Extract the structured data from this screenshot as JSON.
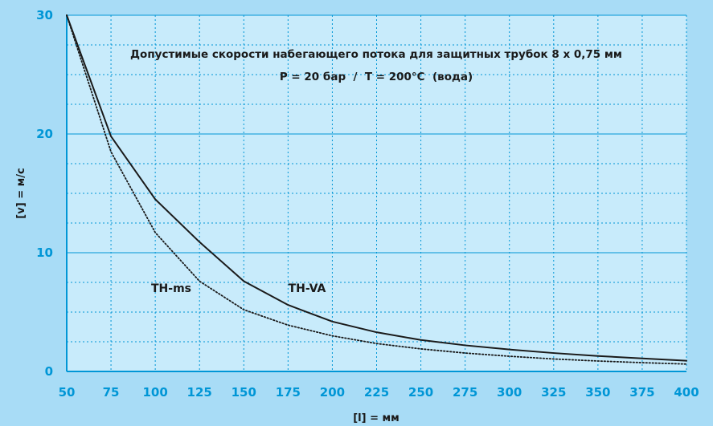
{
  "chart_data": {
    "type": "line",
    "title": "Допустимые скорости набегающего потока для защитных трубок 8 x 0,75 мм",
    "subtitle": "P = 20 бар  /  T = 200°C  (вода)",
    "xlabel": "[l] = мм",
    "ylabel": "[v] = м/с",
    "xlim": [
      50,
      400
    ],
    "ylim": [
      0,
      30
    ],
    "x_ticks": [
      50,
      75,
      100,
      125,
      150,
      175,
      200,
      225,
      250,
      275,
      300,
      325,
      350,
      375,
      400
    ],
    "y_ticks": [
      0,
      10,
      20,
      30
    ],
    "grid": true,
    "x": [
      50,
      75,
      100,
      125,
      150,
      175,
      200,
      225,
      250,
      275,
      300,
      325,
      350,
      375,
      400
    ],
    "series": [
      {
        "name": "TH-VA",
        "style": "solid",
        "values": [
          30,
          19.8,
          14.5,
          10.9,
          7.6,
          5.6,
          4.2,
          3.3,
          2.65,
          2.2,
          1.85,
          1.55,
          1.3,
          1.1,
          0.9
        ]
      },
      {
        "name": "TH-ms",
        "style": "dotted",
        "values": [
          30,
          18.5,
          11.7,
          7.6,
          5.2,
          3.9,
          3.0,
          2.35,
          1.9,
          1.55,
          1.28,
          1.05,
          0.88,
          0.74,
          0.62
        ]
      }
    ],
    "colors": {
      "background": "#a8dcf6",
      "plot_background": "#c8ebfb",
      "grid_major": "#0096d6",
      "grid_minor": "#0096d6",
      "tick_labels": "#0096d6",
      "lines": "#1a1a1a"
    }
  }
}
